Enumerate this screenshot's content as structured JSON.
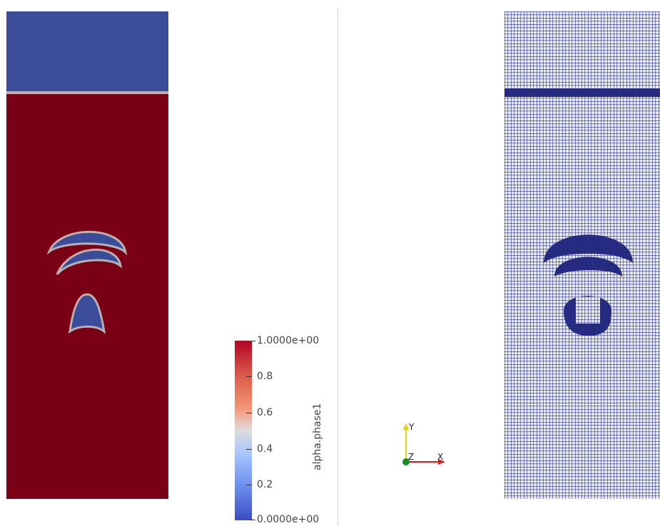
{
  "legend": {
    "title": "alpha.phase1",
    "max_label": "1.0000e+00",
    "min_label": "0.0000e+00",
    "ticks": [
      "0.8",
      "0.6",
      "0.4",
      "0.2"
    ],
    "range": [
      0,
      1
    ]
  },
  "orientation_axes": {
    "x_label": "X",
    "y_label": "Y",
    "z_label": "Z"
  },
  "colors": {
    "phase_high": "#7a0015",
    "phase_low": "#3b4c9b",
    "interface": "#b9b1b0",
    "mesh_lines": "#2a2f8a",
    "axis_x": "#d22020",
    "axis_y": "#e6d21a",
    "axis_z": "#1b8a2a"
  },
  "icons": {
    "orientation": "xyz-axes-icon"
  }
}
